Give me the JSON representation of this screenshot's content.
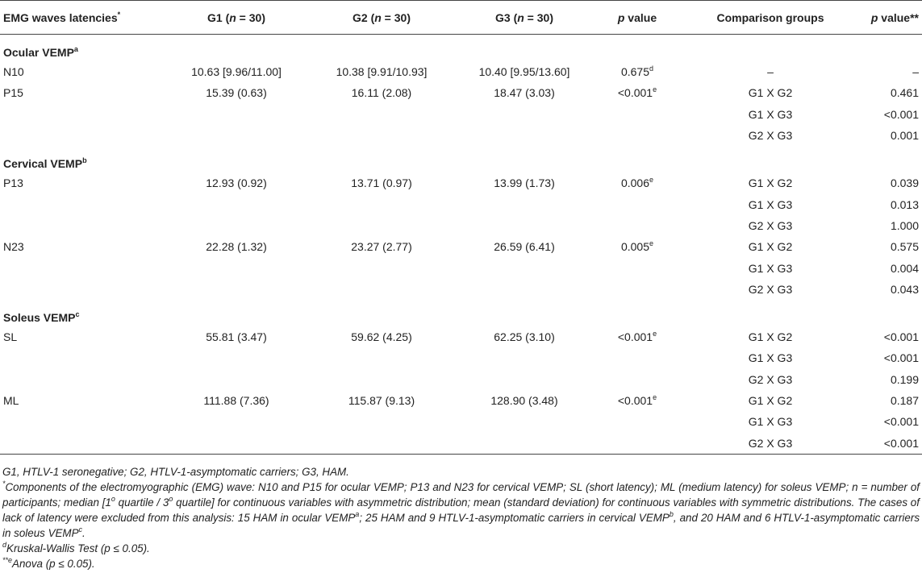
{
  "table": {
    "header": [
      [
        "EMG waves latencies",
        {
          "sup": "*"
        }
      ],
      [
        "G1 (",
        {
          "i": "n"
        },
        " = 30)"
      ],
      [
        "G2 (",
        {
          "i": "n"
        },
        " = 30)"
      ],
      [
        "G3 (",
        {
          "i": "n"
        },
        " = 30)"
      ],
      [
        {
          "i": "p"
        },
        " value"
      ],
      [
        "Comparison groups"
      ],
      [
        {
          "i": "p"
        },
        " value**"
      ]
    ],
    "sections": [
      {
        "title": [
          "Ocular VEMP",
          {
            "sup": "a"
          }
        ],
        "rows": [
          {
            "cells": [
              "N10",
              "10.63 [9.96/11.00]",
              "10.38 [9.91/10.93]",
              "10.40 [9.95/13.60]",
              [
                "0.675",
                {
                  "sup": "d"
                }
              ]
            ],
            "comparisons": [
              [
                "–",
                "–"
              ]
            ]
          },
          {
            "cells": [
              "P15",
              "15.39 (0.63)",
              "16.11 (2.08)",
              "18.47 (3.03)",
              [
                "<0.001",
                {
                  "sup": "e"
                }
              ]
            ],
            "comparisons": [
              [
                "G1 X G2",
                "0.461"
              ],
              [
                "G1 X G3",
                "<0.001"
              ],
              [
                "G2 X G3",
                "0.001"
              ]
            ]
          }
        ]
      },
      {
        "title": [
          "Cervical VEMP",
          {
            "sup": "b"
          }
        ],
        "rows": [
          {
            "cells": [
              "P13",
              "12.93 (0.92)",
              "13.71 (0.97)",
              "13.99 (1.73)",
              [
                "0.006",
                {
                  "sup": "e"
                }
              ]
            ],
            "comparisons": [
              [
                "G1 X G2",
                "0.039"
              ],
              [
                "G1 X G3",
                "0.013"
              ],
              [
                "G2 X G3",
                "1.000"
              ]
            ]
          },
          {
            "cells": [
              "N23",
              "22.28 (1.32)",
              "23.27 (2.77)",
              "26.59 (6.41)",
              [
                "0.005",
                {
                  "sup": "e"
                }
              ]
            ],
            "comparisons": [
              [
                "G1 X G2",
                "0.575"
              ],
              [
                "G1 X G3",
                "0.004"
              ],
              [
                "G2 X G3",
                "0.043"
              ]
            ]
          }
        ]
      },
      {
        "title": [
          "Soleus VEMP",
          {
            "sup": "c"
          }
        ],
        "rows": [
          {
            "cells": [
              "SL",
              "55.81 (3.47)",
              "59.62 (4.25)",
              "62.25 (3.10)",
              [
                "<0.001",
                {
                  "sup": "e"
                }
              ]
            ],
            "comparisons": [
              [
                "G1 X G2",
                "<0.001"
              ],
              [
                "G1 X G3",
                "<0.001"
              ],
              [
                "G2 X G3",
                "0.199"
              ]
            ]
          },
          {
            "cells": [
              "ML",
              "111.88 (7.36)",
              "115.87 (9.13)",
              "128.90 (3.48)",
              [
                "<0.001",
                {
                  "sup": "e"
                }
              ]
            ],
            "comparisons": [
              [
                "G1 X G2",
                "0.187"
              ],
              [
                "G1 X G3",
                "<0.001"
              ],
              [
                "G2 X G3",
                "<0.001"
              ]
            ]
          }
        ]
      }
    ],
    "footnotes": [
      [
        "G1, HTLV-1 seronegative; G2, HTLV-1-asymptomatic carriers; G3, HAM."
      ],
      [
        {
          "sup": "*"
        },
        "Components of the electromyographic (EMG) wave: N10 and P15 for ocular VEMP; P13 and N23 for cervical VEMP; SL (short latency); ML (medium latency) for soleus VEMP; n = number of participants; median [1",
        {
          "sup": "o"
        },
        " quartile / 3",
        {
          "sup": "o"
        },
        " quartile] for continuous variables with asymmetric distribution; mean (standard deviation) for continuous variables with symmetric distributions. The cases of lack of latency were excluded from this analysis: 15 HAM in ocular VEMP",
        {
          "sup": "a"
        },
        "; 25 HAM and 9 HTLV-1-asymptomatic carriers in cervical VEMP",
        {
          "sup": "b"
        },
        ", and 20 HAM and 6 HTLV-1-asymptomatic carriers in soleus VEMP",
        {
          "sup": "c"
        },
        "."
      ],
      [
        {
          "sup": "d"
        },
        "Kruskal-Wallis Test (p ≤ 0.05)."
      ],
      [
        {
          "sup": "**e"
        },
        "Anova (p ≤ 0.05)."
      ]
    ]
  }
}
